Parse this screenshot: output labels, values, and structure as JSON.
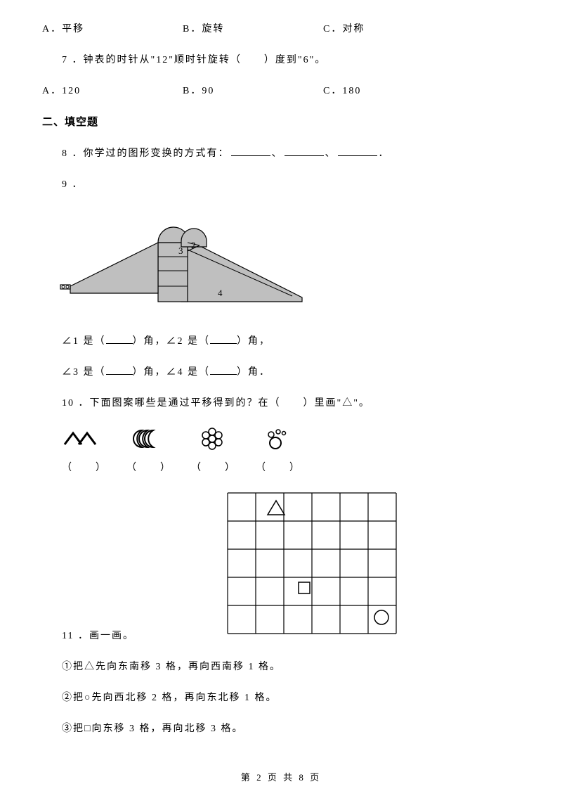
{
  "options1": {
    "a": "A．平移",
    "b": "B．旋转",
    "c": "C．对称"
  },
  "q7": {
    "text": "7 ．钟表的时针从\"12\"顺时针旋转（　　）度到\"6\"。",
    "a": "A．120",
    "b": "B．90",
    "c": "C．180"
  },
  "section2": "二、填空题",
  "q8": {
    "prefix": "8 ．你学过的图形变换的方式有：",
    "sep1": "、",
    "sep2": "、",
    "suffix": "．"
  },
  "q9": {
    "label": "9 ．",
    "line1_a": "∠1 是（",
    "line1_b": "）角，∠2 是（",
    "line1_c": "）角，",
    "line2_a": "∠3 是（",
    "line2_b": "）角，∠4 是（",
    "line2_c": "）角．",
    "figure": {
      "fill": "#bfbfbf",
      "stroke": "#000000",
      "label3": "3",
      "label2": "2",
      "label4": "4"
    }
  },
  "q10": {
    "text": "10 ．下面图案哪些是通过平移得到的？在（　　）里画\"△\"。",
    "parens": [
      "（　　）",
      "（　　）",
      "（　　）",
      "（　　）"
    ],
    "stroke": "#000000"
  },
  "q11": {
    "label": "11 ．画一画。",
    "line1": "①把△先向东南移 3 格，再向西南移 1 格。",
    "line2": "②把○先向西北移 2 格，再向东北移 1 格。",
    "line3": "③把□向东移 3 格，再向北移 3 格。",
    "grid": {
      "rows": 5,
      "cols": 6,
      "stroke": "#000000"
    }
  },
  "footer": "第 2 页 共 8 页"
}
